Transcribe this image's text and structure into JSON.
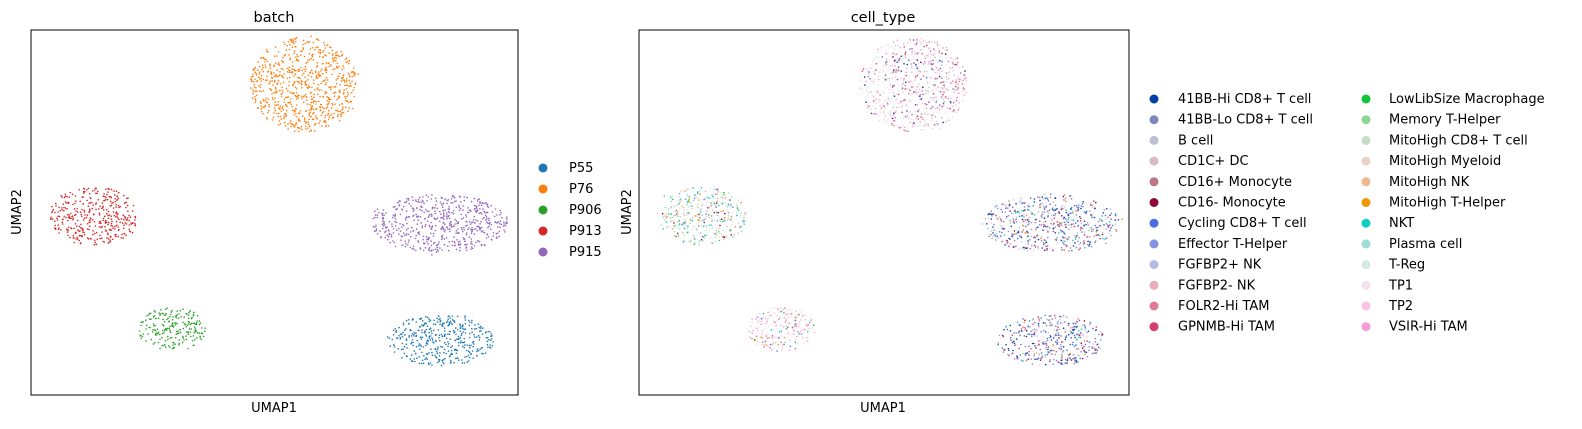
{
  "chart_data": [
    {
      "type": "scatter",
      "title": "batch",
      "xlabel": "UMAP1",
      "ylabel": "UMAP2",
      "xlim": [
        0,
        100
      ],
      "ylim": [
        0,
        100
      ],
      "grid": false,
      "ticks": false,
      "legend_position": "right",
      "series": [
        {
          "name": "P55",
          "color": "#1f77b4"
        },
        {
          "name": "P76",
          "color": "#ff7f0e"
        },
        {
          "name": "P906",
          "color": "#2ca02c"
        },
        {
          "name": "P913",
          "color": "#d62728"
        },
        {
          "name": "P915",
          "color": "#9467bd"
        }
      ],
      "clusters": [
        {
          "series": "P76",
          "center": [
            56,
            85
          ],
          "radius": [
            11,
            13
          ]
        },
        {
          "series": "P913",
          "center": [
            13,
            49
          ],
          "radius": [
            9,
            8
          ]
        },
        {
          "series": "P915",
          "center": [
            84,
            47
          ],
          "radius": [
            14,
            8
          ]
        },
        {
          "series": "P906",
          "center": [
            29,
            18
          ],
          "radius": [
            7,
            6
          ]
        },
        {
          "series": "P55",
          "center": [
            84,
            15
          ],
          "radius": [
            11,
            7
          ]
        }
      ]
    },
    {
      "type": "scatter",
      "title": "cell_type",
      "xlabel": "UMAP1",
      "ylabel": "UMAP2",
      "xlim": [
        0,
        100
      ],
      "ylim": [
        0,
        100
      ],
      "grid": false,
      "ticks": false,
      "legend_position": "right",
      "legend_columns": 2,
      "series": [
        {
          "name": "41BB-Hi CD8+ T cell",
          "color": "#023fa5"
        },
        {
          "name": "41BB-Lo CD8+ T cell",
          "color": "#7d87b9"
        },
        {
          "name": "B cell",
          "color": "#bec1d4"
        },
        {
          "name": "CD1C+ DC",
          "color": "#d6bcc0"
        },
        {
          "name": "CD16+ Monocyte",
          "color": "#bb7784"
        },
        {
          "name": "CD16- Monocyte",
          "color": "#8e063b"
        },
        {
          "name": "Cycling CD8+ T cell",
          "color": "#4a6fe3"
        },
        {
          "name": "Effector T-Helper",
          "color": "#8595e1"
        },
        {
          "name": "FGFBP2+ NK",
          "color": "#b5bbe3"
        },
        {
          "name": "FGFBP2- NK",
          "color": "#e6afb9"
        },
        {
          "name": "FOLR2-Hi TAM",
          "color": "#e07b91"
        },
        {
          "name": "GPNMB-Hi TAM",
          "color": "#d33f6a"
        },
        {
          "name": "LowLibSize Macrophage",
          "color": "#11c638"
        },
        {
          "name": "Memory T-Helper",
          "color": "#8dd593"
        },
        {
          "name": "MitoHigh CD8+ T cell",
          "color": "#c6dec7"
        },
        {
          "name": "MitoHigh Myeloid",
          "color": "#ead3c6"
        },
        {
          "name": "MitoHigh NK",
          "color": "#f0b98d"
        },
        {
          "name": "MitoHigh T-Helper",
          "color": "#ef9708"
        },
        {
          "name": "NKT",
          "color": "#0fcfc0"
        },
        {
          "name": "Plasma cell",
          "color": "#9cded6"
        },
        {
          "name": "T-Reg",
          "color": "#d5eae7"
        },
        {
          "name": "TP1",
          "color": "#f3e1eb"
        },
        {
          "name": "TP2",
          "color": "#f6c4e1"
        },
        {
          "name": "VSIR-Hi TAM",
          "color": "#f79cd4"
        }
      ],
      "clusters": [
        {
          "center": [
            56,
            85
          ],
          "radius": [
            11,
            13
          ],
          "mix": "tumor"
        },
        {
          "center": [
            13,
            49
          ],
          "radius": [
            9,
            8
          ],
          "mix": "myeloid"
        },
        {
          "center": [
            84,
            47
          ],
          "radius": [
            14,
            8
          ],
          "mix": "tcell"
        },
        {
          "center": [
            29,
            18
          ],
          "radius": [
            7,
            6
          ],
          "mix": "tumor-small"
        },
        {
          "center": [
            84,
            15
          ],
          "radius": [
            11,
            7
          ],
          "mix": "tcell"
        }
      ]
    }
  ]
}
